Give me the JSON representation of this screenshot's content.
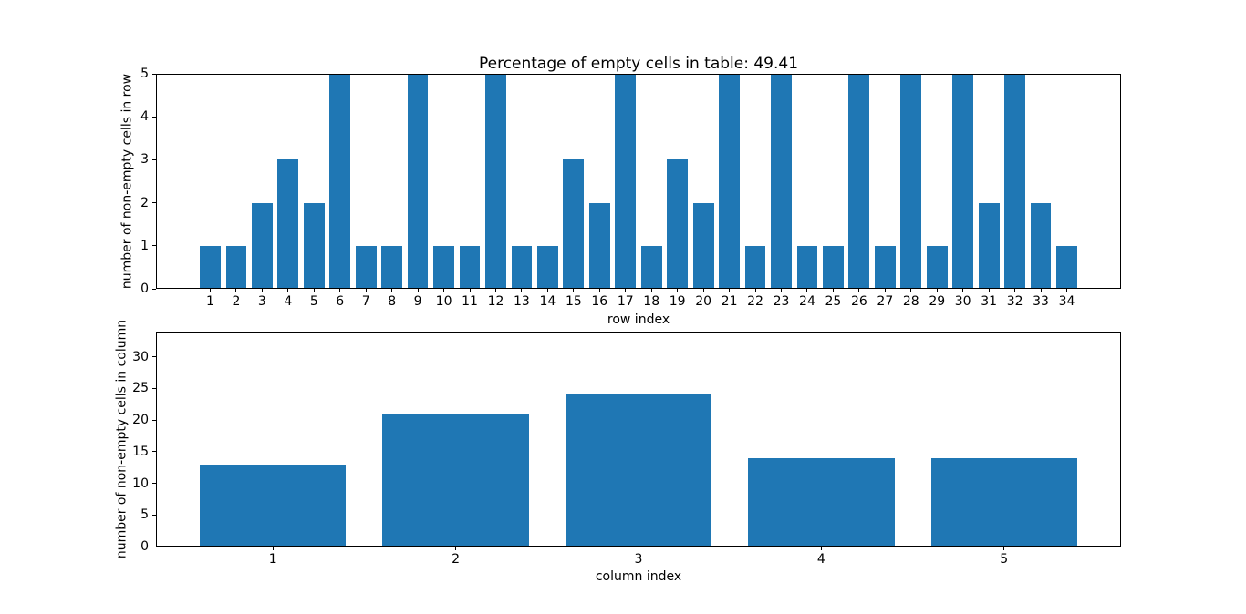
{
  "figure": {
    "background_color": "#ffffff",
    "text_color": "#000000"
  },
  "chart_data": [
    {
      "type": "bar",
      "title": "Percentage of empty cells in table: 49.41",
      "xlabel": "row index",
      "ylabel": "number of non-empty cells in row",
      "categories": [
        1,
        2,
        3,
        4,
        5,
        6,
        7,
        8,
        9,
        10,
        11,
        12,
        13,
        14,
        15,
        16,
        17,
        18,
        19,
        20,
        21,
        22,
        23,
        24,
        25,
        26,
        27,
        28,
        29,
        30,
        31,
        32,
        33,
        34
      ],
      "values": [
        1,
        1,
        2,
        3,
        2,
        5,
        1,
        1,
        5,
        1,
        1,
        5,
        1,
        1,
        3,
        2,
        5,
        1,
        3,
        2,
        5,
        1,
        5,
        1,
        1,
        5,
        1,
        5,
        1,
        5,
        2,
        5,
        2,
        1
      ],
      "bar_color": "#1f77b4",
      "bar_width": 0.8,
      "xlim": [
        -1.09,
        36.09
      ],
      "ylim": [
        0,
        5
      ],
      "yticks": [
        0,
        1,
        2,
        3,
        4,
        5
      ],
      "grid": false,
      "legend_position": "none"
    },
    {
      "type": "bar",
      "title": "",
      "xlabel": "column index",
      "ylabel": "number of non-empty cells in column",
      "categories": [
        1,
        2,
        3,
        4,
        5
      ],
      "values": [
        13,
        21,
        24,
        14,
        14
      ],
      "bar_color": "#1f77b4",
      "bar_width": 0.8,
      "xlim": [
        0.36,
        5.64
      ],
      "ylim": [
        0,
        34
      ],
      "yticks": [
        0,
        5,
        10,
        15,
        20,
        25,
        30
      ],
      "grid": false,
      "legend_position": "none"
    }
  ]
}
